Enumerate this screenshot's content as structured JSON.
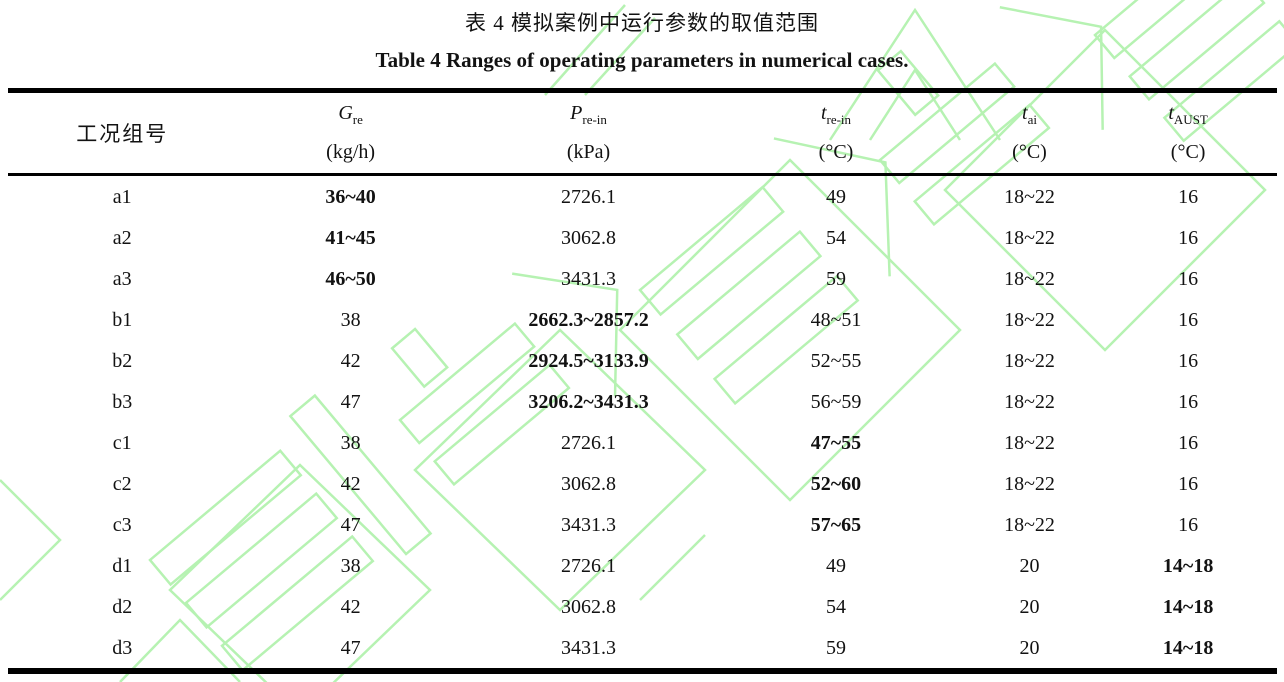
{
  "captions": {
    "zh": "表 4  模拟案例中运行参数的取值范围",
    "en": "Table 4 Ranges of operating parameters in numerical cases."
  },
  "table": {
    "corner_header": "工况组号",
    "columns": [
      {
        "symbol": "G",
        "sub": "re",
        "unit": "(kg/h)"
      },
      {
        "symbol": "P",
        "sub": "re-in",
        "unit": "(kPa)"
      },
      {
        "symbol": "t",
        "sub": "re-in",
        "unit": "(°C)"
      },
      {
        "symbol": "t",
        "sub": "ai",
        "unit": "(°C)"
      },
      {
        "symbol": "t",
        "sub": "AUST",
        "unit": "(°C)"
      }
    ],
    "rows": [
      {
        "cells": [
          "a1",
          "36~40",
          "2726.1",
          "49",
          "18~22",
          "16"
        ],
        "bold": [
          1
        ]
      },
      {
        "cells": [
          "a2",
          "41~45",
          "3062.8",
          "54",
          "18~22",
          "16"
        ],
        "bold": [
          1
        ]
      },
      {
        "cells": [
          "a3",
          "46~50",
          "3431.3",
          "59",
          "18~22",
          "16"
        ],
        "bold": [
          1
        ]
      },
      {
        "cells": [
          "b1",
          "38",
          "2662.3~2857.2",
          "48~51",
          "18~22",
          "16"
        ],
        "bold": [
          2
        ]
      },
      {
        "cells": [
          "b2",
          "42",
          "2924.5~3133.9",
          "52~55",
          "18~22",
          "16"
        ],
        "bold": [
          2
        ]
      },
      {
        "cells": [
          "b3",
          "47",
          "3206.2~3431.3",
          "56~59",
          "18~22",
          "16"
        ],
        "bold": [
          2
        ]
      },
      {
        "cells": [
          "c1",
          "38",
          "2726.1",
          "47~55",
          "18~22",
          "16"
        ],
        "bold": [
          3
        ]
      },
      {
        "cells": [
          "c2",
          "42",
          "3062.8",
          "52~60",
          "18~22",
          "16"
        ],
        "bold": [
          3
        ]
      },
      {
        "cells": [
          "c3",
          "47",
          "3431.3",
          "57~65",
          "18~22",
          "16"
        ],
        "bold": [
          3
        ]
      },
      {
        "cells": [
          "d1",
          "38",
          "2726.1",
          "49",
          "20",
          "14~18"
        ],
        "bold": [
          5
        ]
      },
      {
        "cells": [
          "d2",
          "42",
          "3062.8",
          "54",
          "20",
          "14~18"
        ],
        "bold": [
          5
        ]
      },
      {
        "cells": [
          "d3",
          "47",
          "3431.3",
          "59",
          "20",
          "14~18"
        ],
        "bold": [
          5
        ]
      }
    ]
  },
  "watermark": {
    "color": "#b6f2b2"
  },
  "colors": {
    "text": "#121212",
    "rule": "#000000",
    "background": "#ffffff"
  }
}
